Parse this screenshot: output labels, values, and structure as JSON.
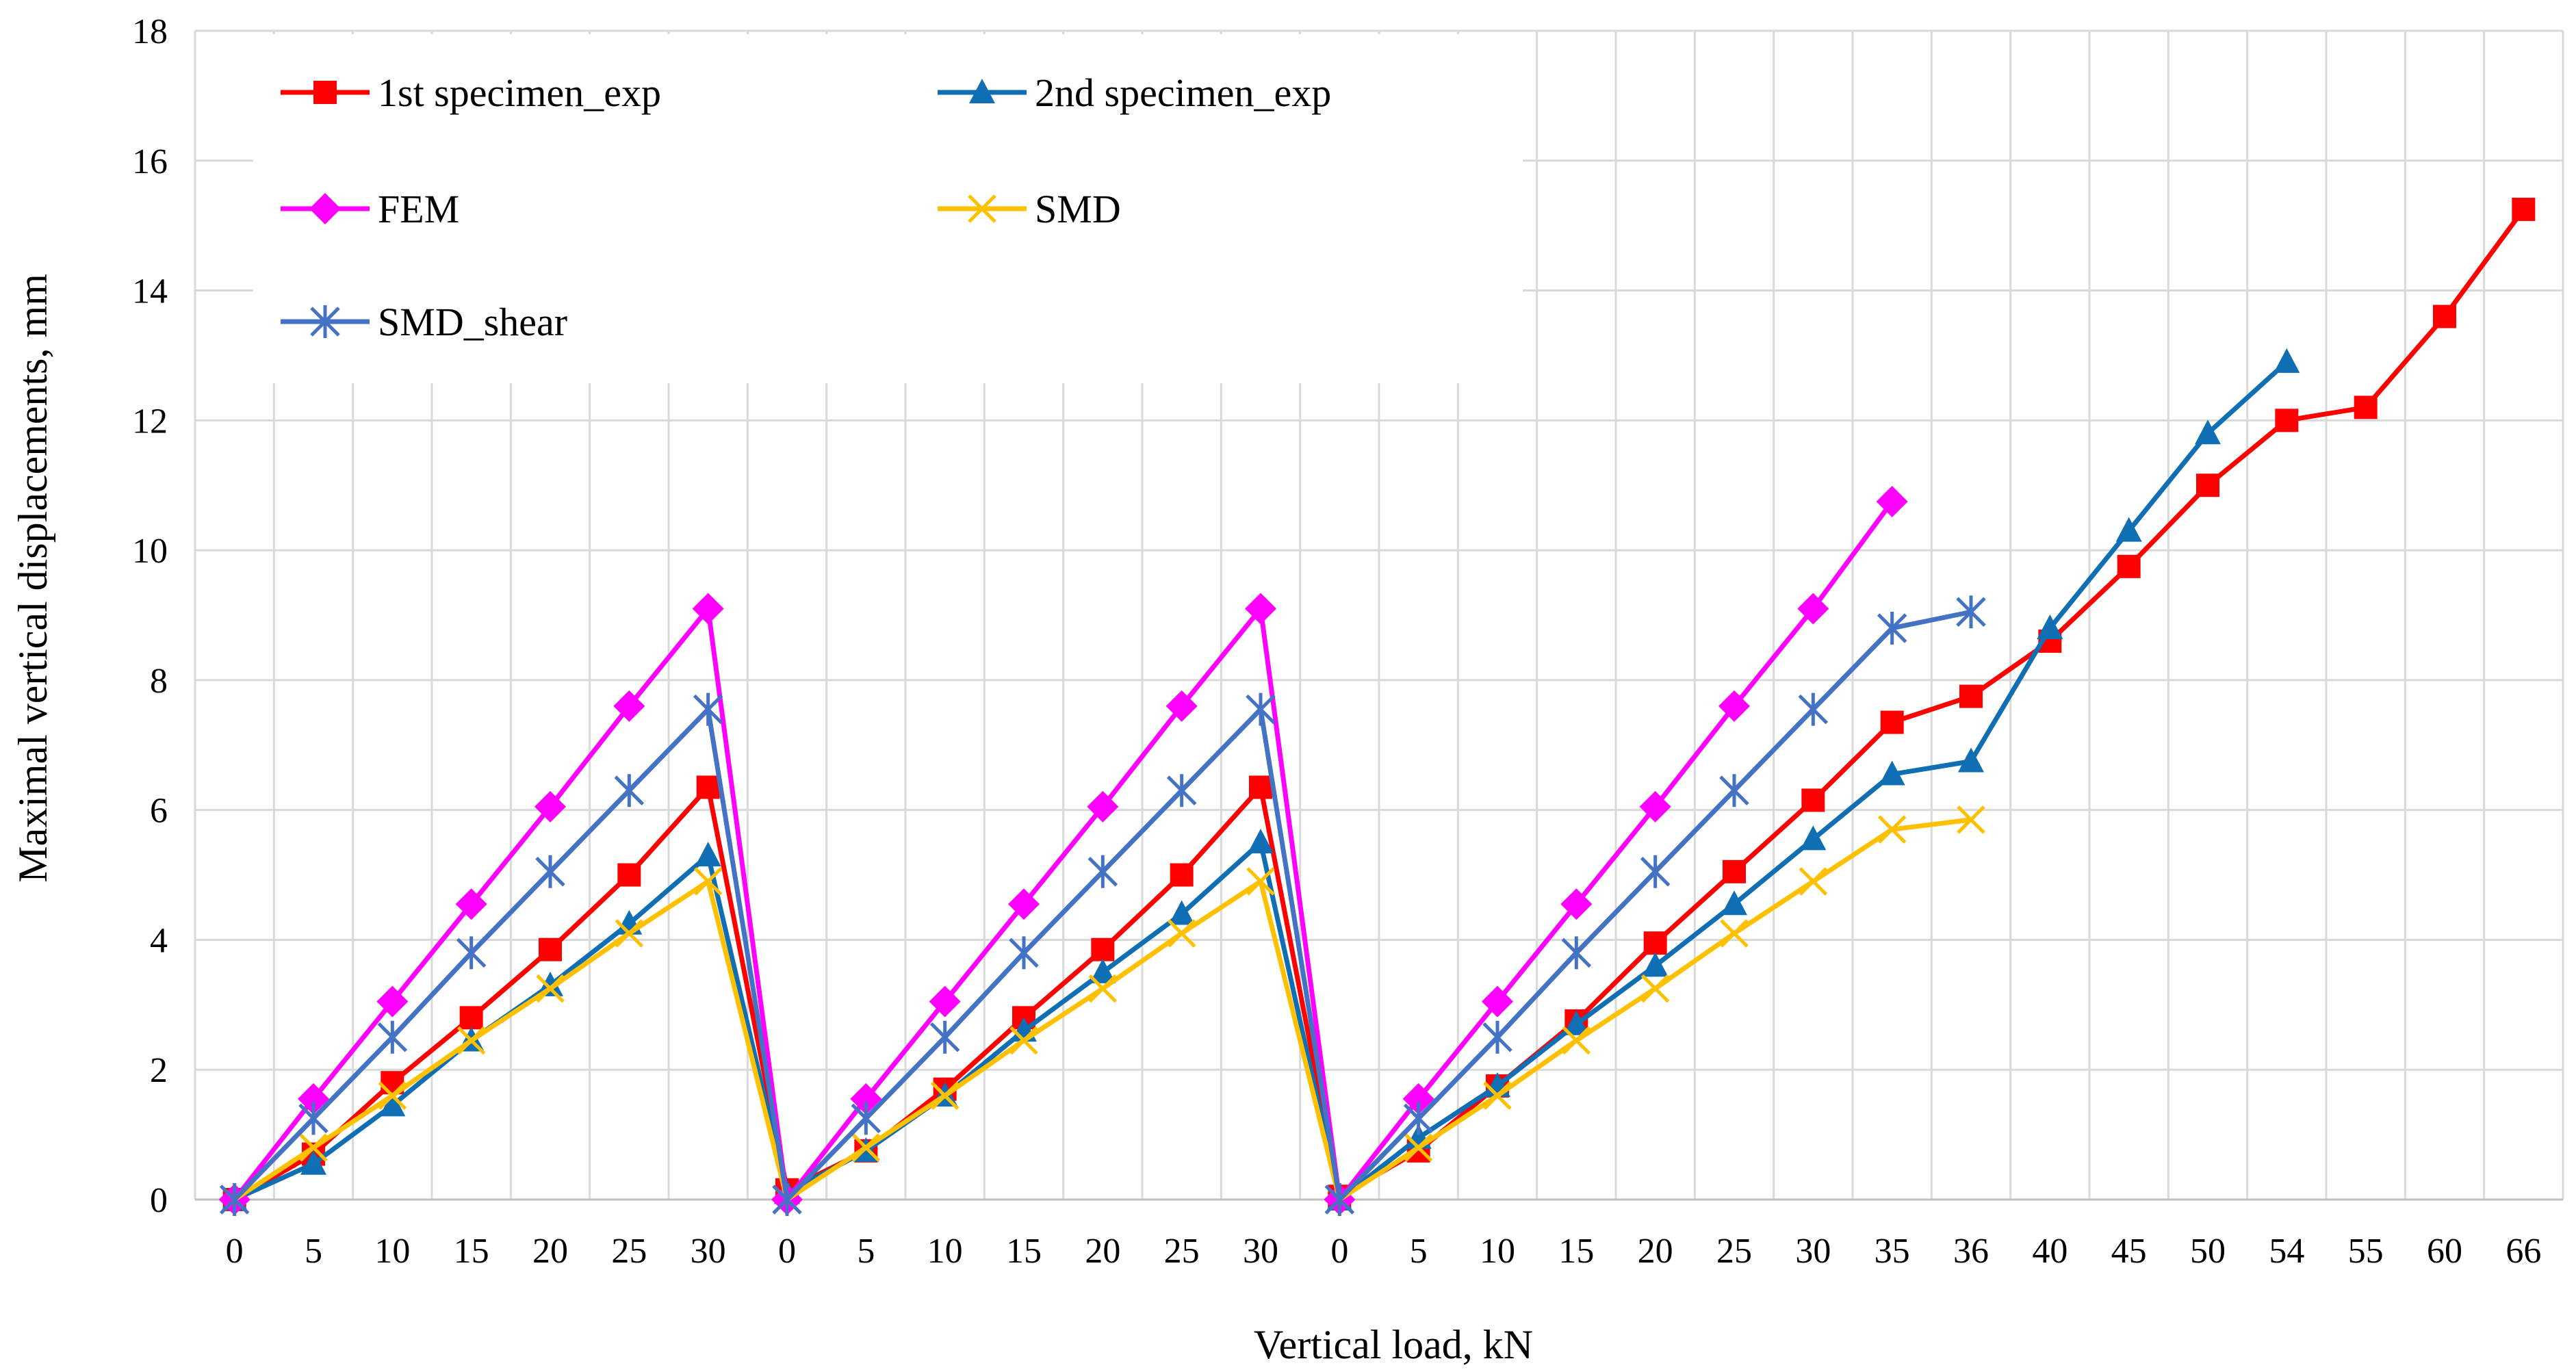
{
  "chart_data": {
    "type": "line",
    "title": "",
    "xlabel": "Vertical load, kN",
    "ylabel": "Maximal vertical displacements, mm",
    "ylim": [
      0,
      18
    ],
    "yticks": [
      0,
      2,
      4,
      6,
      8,
      10,
      12,
      14,
      16,
      18
    ],
    "grid": true,
    "legend_position": "top-left",
    "categories": [
      "0",
      "5",
      "10",
      "15",
      "20",
      "25",
      "30",
      "0",
      "5",
      "10",
      "15",
      "20",
      "25",
      "30",
      "0",
      "5",
      "10",
      "15",
      "20",
      "25",
      "30",
      "35",
      "36",
      "40",
      "45",
      "50",
      "54",
      "55",
      "60",
      "66"
    ],
    "series": [
      {
        "name": "1st specimen_exp",
        "color": "#ff0000",
        "marker": "square",
        "values": [
          0,
          0.7,
          1.8,
          2.8,
          3.85,
          5.0,
          6.35,
          0.15,
          0.75,
          1.7,
          2.8,
          3.85,
          5.0,
          6.35,
          0.05,
          0.75,
          1.75,
          2.75,
          3.95,
          5.05,
          6.15,
          7.35,
          7.75,
          8.6,
          9.75,
          11.0,
          12.0,
          12.2,
          13.6,
          15.25
        ]
      },
      {
        "name": "2nd specimen_exp",
        "color": "#0f6eb4",
        "marker": "triangle",
        "values": [
          0,
          0.55,
          1.45,
          2.45,
          3.3,
          4.25,
          5.3,
          0.1,
          0.75,
          1.6,
          2.6,
          3.5,
          4.4,
          5.5,
          0.0,
          0.95,
          1.75,
          2.7,
          3.6,
          4.55,
          5.55,
          6.55,
          6.75,
          8.8,
          10.3,
          11.8,
          12.9,
          null,
          null,
          null
        ]
      },
      {
        "name": "FEM",
        "color": "#ff00ff",
        "marker": "diamond",
        "values": [
          0,
          1.55,
          3.05,
          4.55,
          6.05,
          7.6,
          9.1,
          0,
          1.55,
          3.05,
          4.55,
          6.05,
          7.6,
          9.1,
          0,
          1.55,
          3.05,
          4.55,
          6.05,
          7.6,
          9.1,
          10.75,
          null,
          null,
          null,
          null,
          null,
          null,
          null,
          null
        ]
      },
      {
        "name": "SMD",
        "color": "#ffc000",
        "marker": "x",
        "values": [
          0,
          0.8,
          1.6,
          2.45,
          3.25,
          4.1,
          4.9,
          0,
          0.8,
          1.6,
          2.45,
          3.25,
          4.1,
          4.9,
          0,
          0.8,
          1.6,
          2.45,
          3.25,
          4.1,
          4.9,
          5.7,
          5.85,
          null,
          null,
          null,
          null,
          null,
          null,
          null
        ]
      },
      {
        "name": "SMD_shear",
        "color": "#4472c4",
        "marker": "star",
        "values": [
          0,
          1.25,
          2.5,
          3.8,
          5.05,
          6.3,
          7.55,
          0,
          1.25,
          2.5,
          3.8,
          5.05,
          6.3,
          7.55,
          0,
          1.25,
          2.5,
          3.8,
          5.05,
          6.3,
          7.55,
          8.8,
          9.05,
          null,
          null,
          null,
          null,
          null,
          null,
          null
        ]
      }
    ]
  }
}
